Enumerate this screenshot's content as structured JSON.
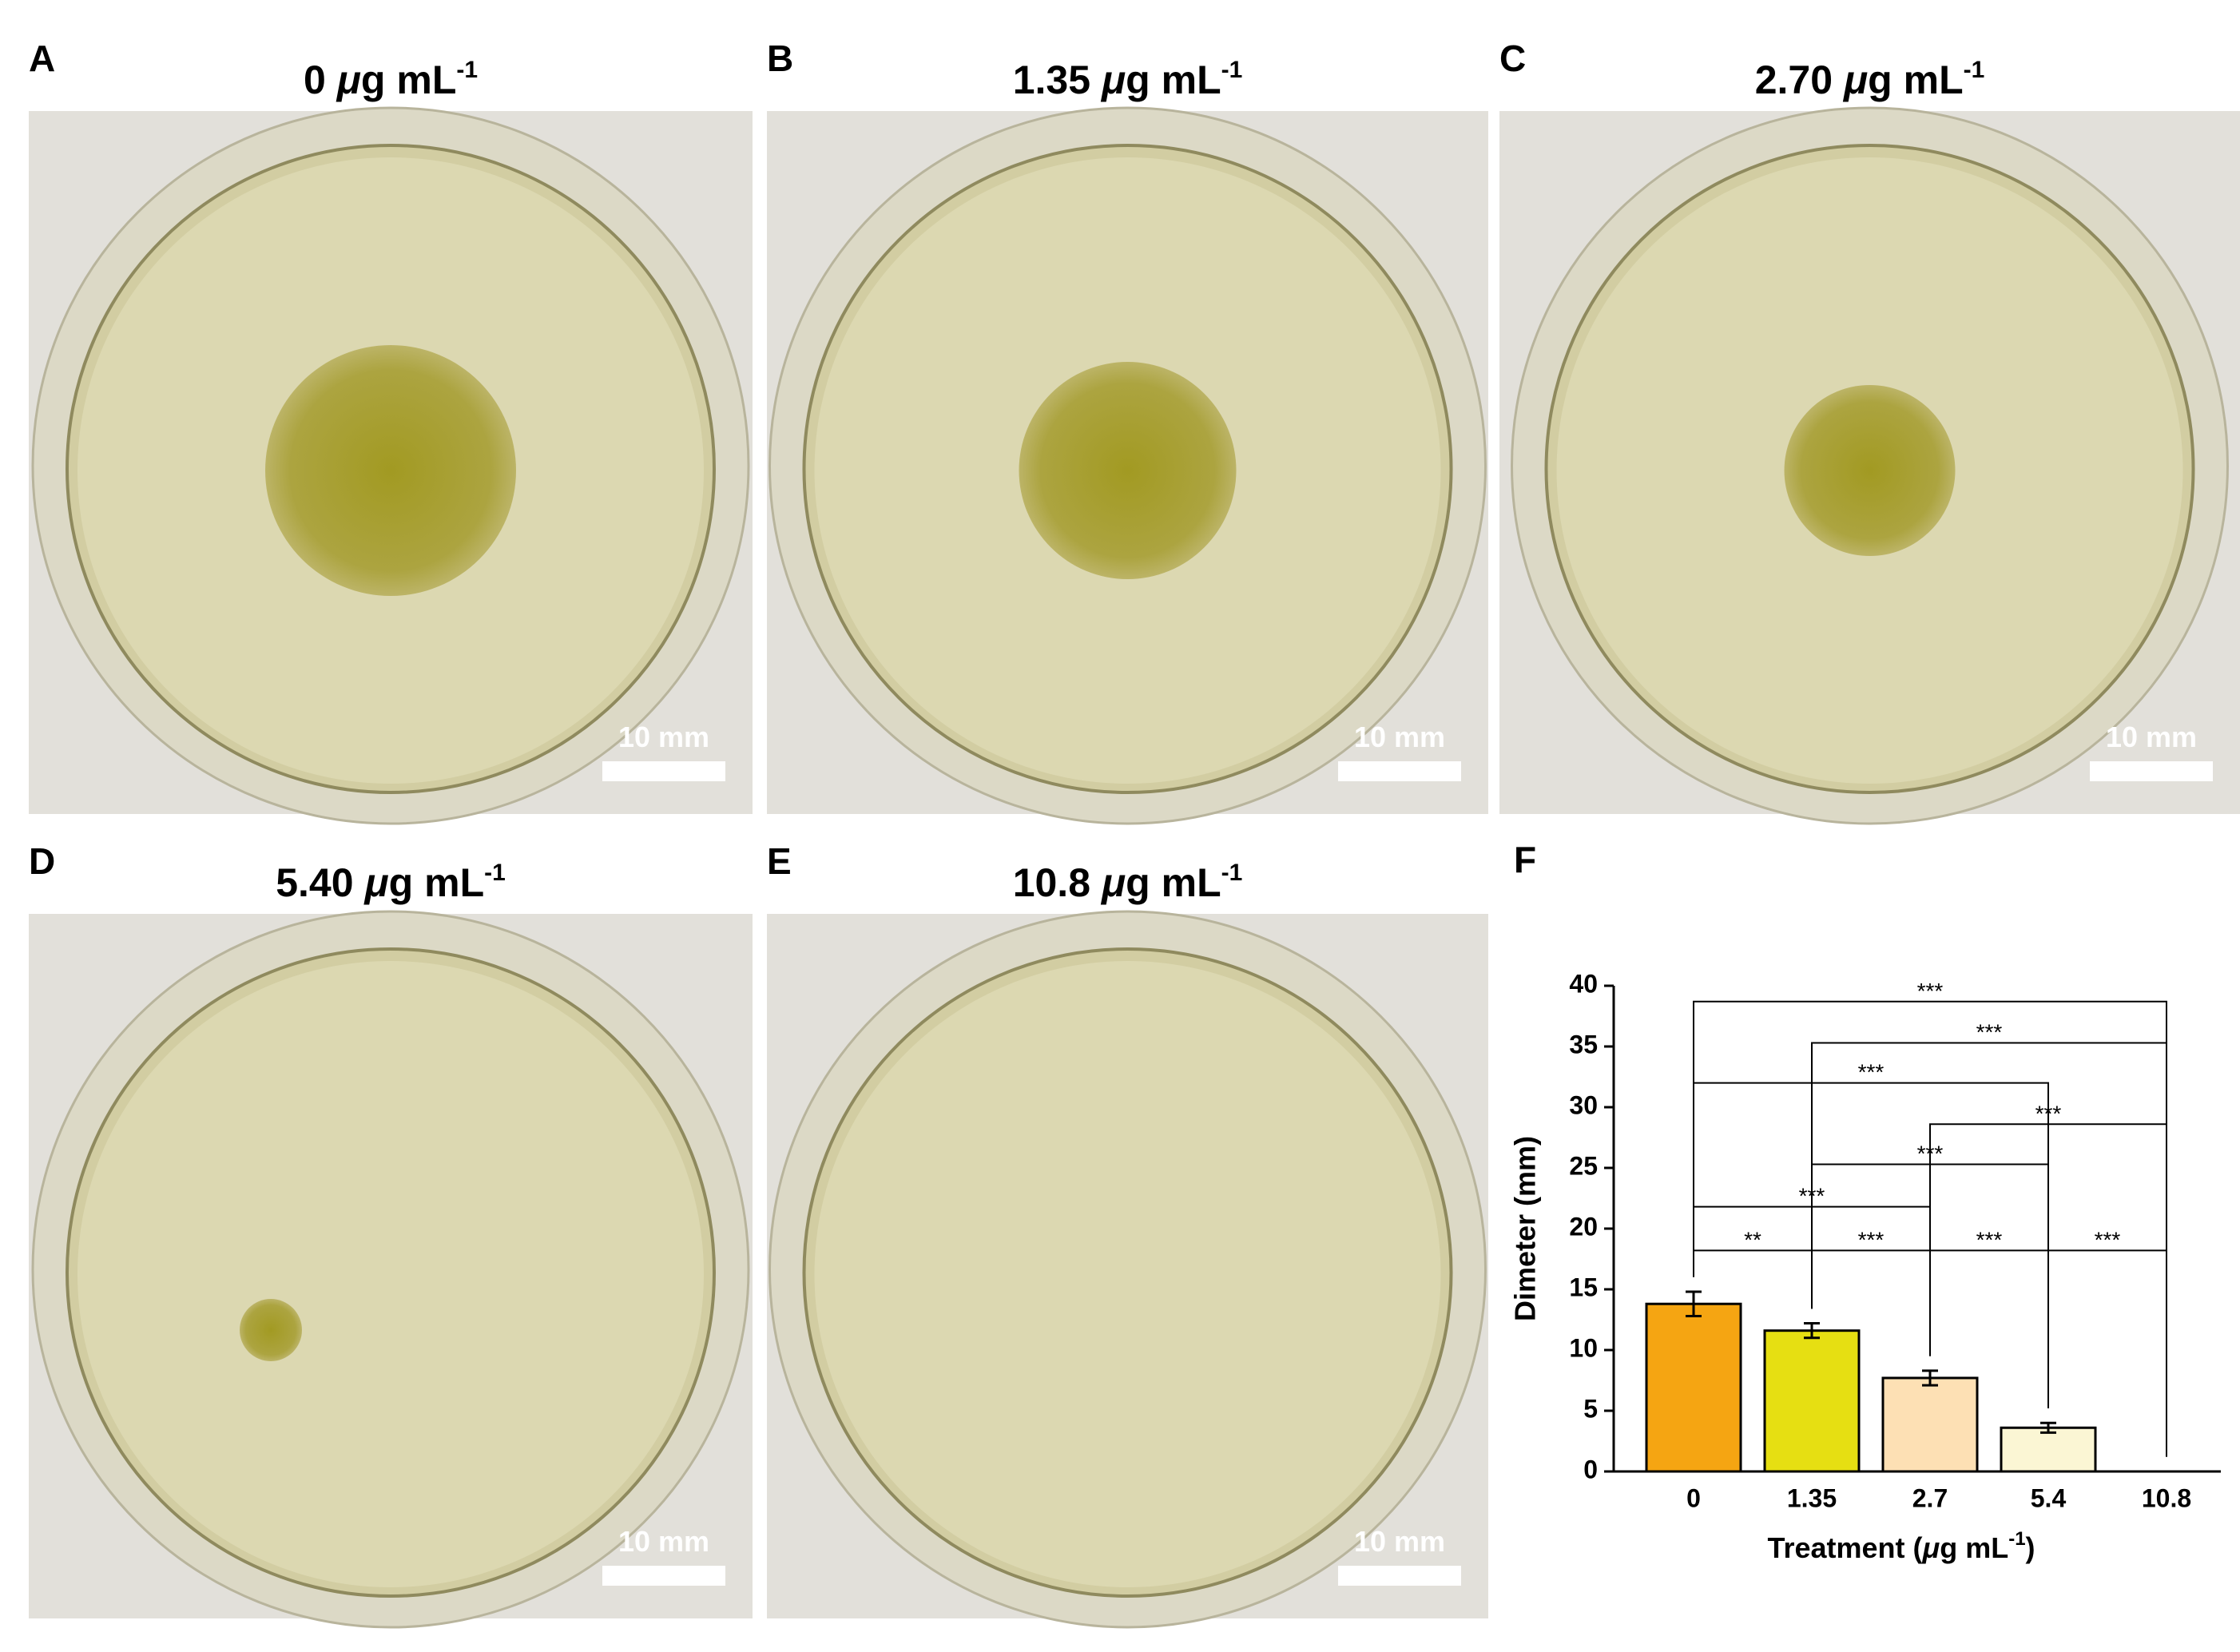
{
  "panels": [
    {
      "letter": "A",
      "title": {
        "value": "0",
        "mu": "μ",
        "unit": "g mL",
        "exp": "-1"
      },
      "scale_bar": "10 mm"
    },
    {
      "letter": "B",
      "title": {
        "value": "1.35",
        "mu": "μ",
        "unit": "g mL",
        "exp": "-1"
      },
      "scale_bar": "10 mm"
    },
    {
      "letter": "C",
      "title": {
        "value": "2.70",
        "mu": "μ",
        "unit": "g mL",
        "exp": "-1"
      },
      "scale_bar": "10 mm"
    },
    {
      "letter": "D",
      "title": {
        "value": "5.40",
        "mu": "μ",
        "unit": "g mL",
        "exp": "-1"
      },
      "scale_bar": "10 mm"
    },
    {
      "letter": "E",
      "title": {
        "value": "10.8",
        "mu": "μ",
        "unit": "g mL",
        "exp": "-1"
      },
      "scale_bar": "10 mm"
    }
  ],
  "chart_data": {
    "type": "bar",
    "letter": "F",
    "categories": [
      "0",
      "1.35",
      "2.7",
      "5.4",
      "10.8"
    ],
    "values": [
      13.8,
      11.6,
      7.7,
      3.6,
      0
    ],
    "errors": [
      1.0,
      0.6,
      0.6,
      0.4,
      0
    ],
    "colors": [
      "#f5a512",
      "#e6df12",
      "#fde0b4",
      "#fbf6d4",
      "#fbf6d4"
    ],
    "ylim": [
      0,
      40
    ],
    "yticks": [
      0,
      5,
      10,
      15,
      20,
      25,
      30,
      35,
      40
    ],
    "y_label": "Dimeter (mm)",
    "x_label": {
      "text": "Treatment (",
      "mu": "μ",
      "unit": "g mL",
      "exp": "-1",
      "close": ")"
    },
    "significance": [
      {
        "from": 0,
        "to": 1,
        "label": "**"
      },
      {
        "from": 1,
        "to": 2,
        "label": "***"
      },
      {
        "from": 2,
        "to": 3,
        "label": "***"
      },
      {
        "from": 3,
        "to": 4,
        "label": "***"
      },
      {
        "from": 0,
        "to": 2,
        "label": "***"
      },
      {
        "from": 1,
        "to": 3,
        "label": "***"
      },
      {
        "from": 2,
        "to": 4,
        "label": "***"
      },
      {
        "from": 0,
        "to": 3,
        "label": "***"
      },
      {
        "from": 1,
        "to": 4,
        "label": "***"
      },
      {
        "from": 0,
        "to": 4,
        "label": "***"
      }
    ]
  }
}
